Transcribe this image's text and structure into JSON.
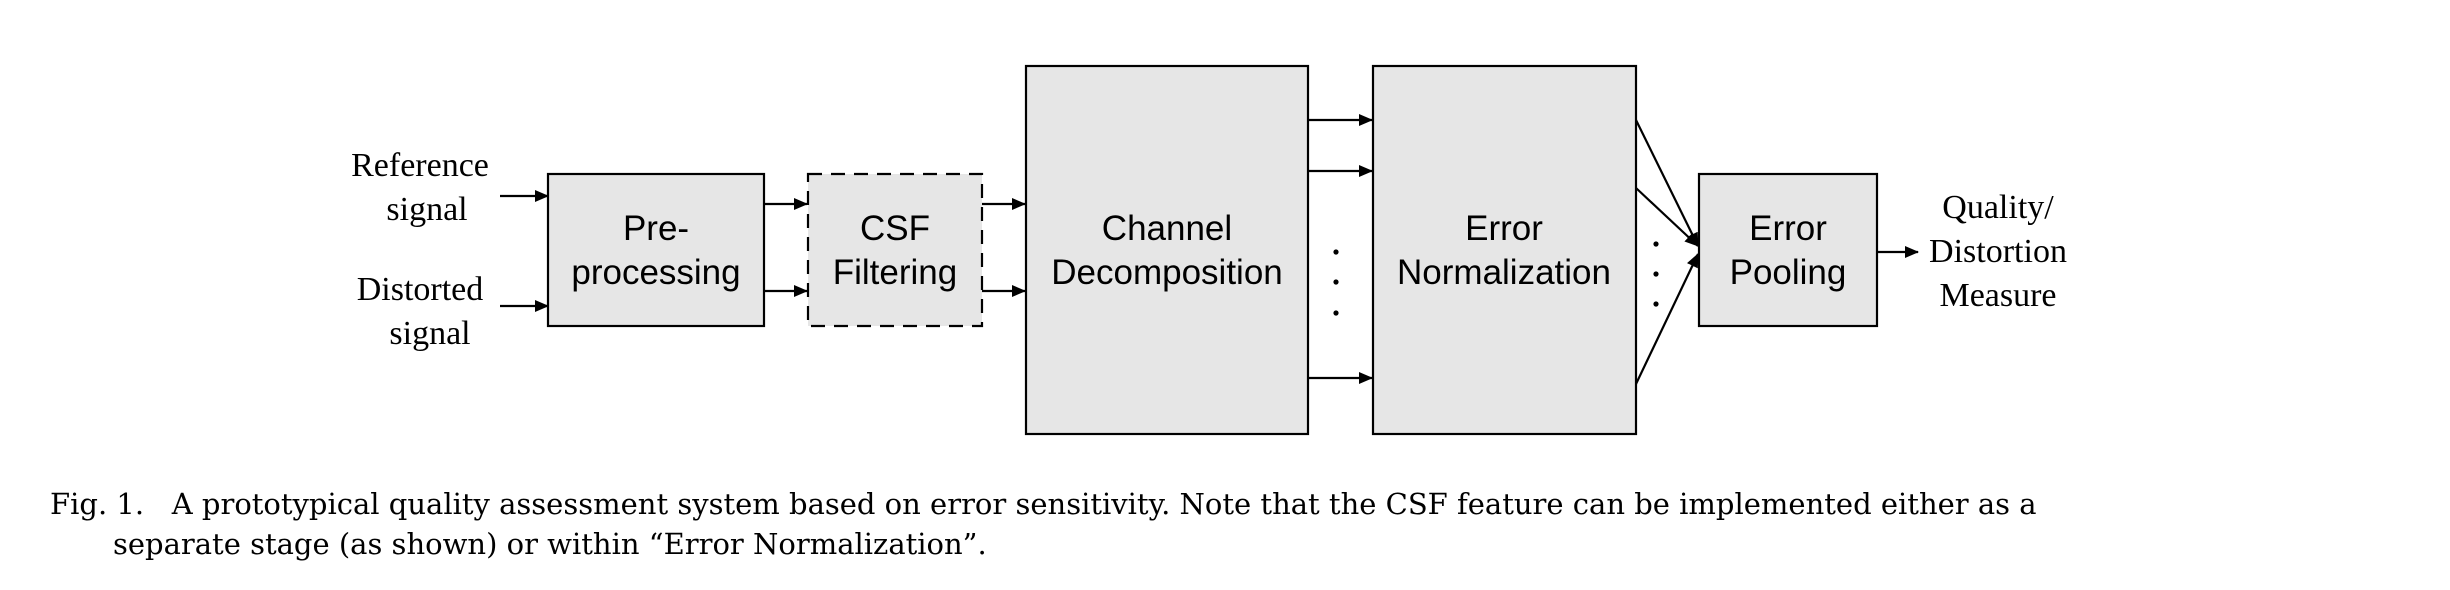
{
  "diagram": {
    "inputs": {
      "reference": [
        "Reference",
        "signal"
      ],
      "distorted": [
        "Distorted",
        "signal"
      ]
    },
    "boxes": {
      "preprocessing": [
        "Pre-",
        "processing"
      ],
      "csf": [
        "CSF",
        "Filtering"
      ],
      "channel": [
        "Channel",
        "Decomposition"
      ],
      "error_norm": [
        "Error",
        "Normalization"
      ],
      "pooling": [
        "Error",
        "Pooling"
      ]
    },
    "output": [
      "Quality/",
      "Distortion",
      "Measure"
    ],
    "ellipsis_dots": "· · ·"
  },
  "caption": {
    "label": "Fig. 1.",
    "line1": "A prototypical quality assessment system based on error sensitivity. Note that the CSF feature can be implemented either as a",
    "line2": "separate stage (as shown) or within “Error Normalization”."
  }
}
